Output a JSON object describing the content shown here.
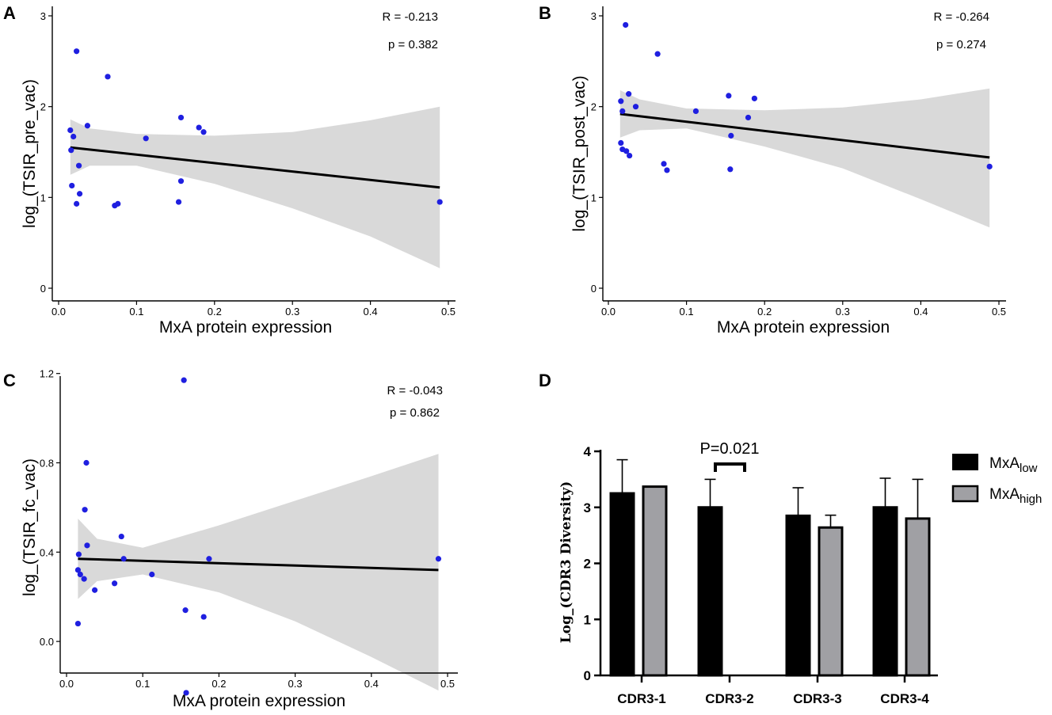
{
  "chart_data": [
    {
      "panel": "A",
      "type": "scatter",
      "xlabel": "MxA protein expression",
      "ylabel": "log_(TSIR_pre_vac)",
      "xlim": [
        0.0,
        0.5
      ],
      "ylim": [
        0,
        3
      ],
      "xticks": [
        "0.0",
        "0.1",
        "0.2",
        "0.3",
        "0.4",
        "0.5"
      ],
      "yticks": [
        "0",
        "1",
        "2",
        "3"
      ],
      "ytick_values": [
        0,
        1,
        2,
        3
      ],
      "stats": {
        "r": "R = -0.213",
        "p": "p = 0.382"
      },
      "points": [
        {
          "x": 0.023,
          "y": 2.61
        },
        {
          "x": 0.063,
          "y": 2.33
        },
        {
          "x": 0.157,
          "y": 1.88
        },
        {
          "x": 0.18,
          "y": 1.77
        },
        {
          "x": 0.186,
          "y": 1.72
        },
        {
          "x": 0.037,
          "y": 1.79
        },
        {
          "x": 0.015,
          "y": 1.74
        },
        {
          "x": 0.019,
          "y": 1.67
        },
        {
          "x": 0.112,
          "y": 1.65
        },
        {
          "x": 0.016,
          "y": 1.52
        },
        {
          "x": 0.026,
          "y": 1.35
        },
        {
          "x": 0.017,
          "y": 1.13
        },
        {
          "x": 0.157,
          "y": 1.18
        },
        {
          "x": 0.027,
          "y": 1.04
        },
        {
          "x": 0.023,
          "y": 0.93
        },
        {
          "x": 0.072,
          "y": 0.91
        },
        {
          "x": 0.076,
          "y": 0.93
        },
        {
          "x": 0.154,
          "y": 0.95
        },
        {
          "x": 0.489,
          "y": 0.95
        }
      ],
      "fit": {
        "x": [
          0.015,
          0.489
        ],
        "y": [
          1.55,
          1.11
        ]
      },
      "band": {
        "x": [
          0.015,
          0.04,
          0.1,
          0.2,
          0.3,
          0.4,
          0.489
        ],
        "lower": [
          1.25,
          1.35,
          1.35,
          1.15,
          0.88,
          0.57,
          0.22
        ],
        "upper": [
          1.86,
          1.76,
          1.7,
          1.68,
          1.72,
          1.85,
          2.0
        ]
      }
    },
    {
      "panel": "B",
      "type": "scatter",
      "xlabel": "MxA protein expression",
      "ylabel": "log_(TSIR_post_vac)",
      "xlim": [
        0.0,
        0.5
      ],
      "ylim": [
        0,
        3
      ],
      "xticks": [
        "0.0",
        "0.1",
        "0.2",
        "0.3",
        "0.4",
        "0.5"
      ],
      "yticks": [
        "0",
        "1",
        "2",
        "3"
      ],
      "ytick_values": [
        0,
        1,
        2,
        3
      ],
      "stats": {
        "r": "R = -0.264",
        "p": "p = 0.274"
      },
      "points": [
        {
          "x": 0.022,
          "y": 2.9
        },
        {
          "x": 0.063,
          "y": 2.58
        },
        {
          "x": 0.026,
          "y": 2.14
        },
        {
          "x": 0.154,
          "y": 2.12
        },
        {
          "x": 0.187,
          "y": 2.09
        },
        {
          "x": 0.016,
          "y": 2.06
        },
        {
          "x": 0.035,
          "y": 2.0
        },
        {
          "x": 0.112,
          "y": 1.95
        },
        {
          "x": 0.018,
          "y": 1.95
        },
        {
          "x": 0.179,
          "y": 1.88
        },
        {
          "x": 0.157,
          "y": 1.68
        },
        {
          "x": 0.016,
          "y": 1.6
        },
        {
          "x": 0.018,
          "y": 1.53
        },
        {
          "x": 0.023,
          "y": 1.51
        },
        {
          "x": 0.027,
          "y": 1.46
        },
        {
          "x": 0.071,
          "y": 1.37
        },
        {
          "x": 0.075,
          "y": 1.3
        },
        {
          "x": 0.156,
          "y": 1.31
        },
        {
          "x": 0.488,
          "y": 1.34
        }
      ],
      "fit": {
        "x": [
          0.015,
          0.488
        ],
        "y": [
          1.92,
          1.44
        ]
      },
      "band": {
        "x": [
          0.015,
          0.04,
          0.1,
          0.2,
          0.3,
          0.4,
          0.488
        ],
        "lower": [
          1.66,
          1.74,
          1.76,
          1.56,
          1.32,
          0.98,
          0.67
        ],
        "upper": [
          2.18,
          2.08,
          1.98,
          1.96,
          1.99,
          2.08,
          2.2
        ]
      }
    },
    {
      "panel": "C",
      "type": "scatter",
      "xlabel": "MxA protein expression",
      "ylabel": "log_(TSIR_fc_vac)",
      "xlim": [
        0.0,
        0.5
      ],
      "ylim": [
        -0.25,
        1.25
      ],
      "xticks": [
        "0.0",
        "0.1",
        "0.2",
        "0.3",
        "0.4",
        "0.5"
      ],
      "yticks": [
        "0.0",
        "0.4",
        "0.8",
        "1.2"
      ],
      "ytick_values": [
        0.0,
        0.4,
        0.8,
        1.2
      ],
      "stats": {
        "r": "R = -0.043",
        "p": "p = 0.862"
      },
      "points": [
        {
          "x": 0.154,
          "y": 1.17
        },
        {
          "x": 0.026,
          "y": 0.8
        },
        {
          "x": 0.024,
          "y": 0.59
        },
        {
          "x": 0.072,
          "y": 0.47
        },
        {
          "x": 0.027,
          "y": 0.43
        },
        {
          "x": 0.016,
          "y": 0.39
        },
        {
          "x": 0.075,
          "y": 0.37
        },
        {
          "x": 0.187,
          "y": 0.37
        },
        {
          "x": 0.488,
          "y": 0.37
        },
        {
          "x": 0.015,
          "y": 0.32
        },
        {
          "x": 0.018,
          "y": 0.3
        },
        {
          "x": 0.112,
          "y": 0.3
        },
        {
          "x": 0.023,
          "y": 0.28
        },
        {
          "x": 0.063,
          "y": 0.26
        },
        {
          "x": 0.037,
          "y": 0.23
        },
        {
          "x": 0.156,
          "y": 0.14
        },
        {
          "x": 0.18,
          "y": 0.11
        },
        {
          "x": 0.015,
          "y": 0.08
        },
        {
          "x": 0.157,
          "y": -0.23
        }
      ],
      "fit": {
        "x": [
          0.015,
          0.488
        ],
        "y": [
          0.37,
          0.32
        ]
      },
      "band": {
        "x": [
          0.015,
          0.04,
          0.1,
          0.2,
          0.3,
          0.4,
          0.488
        ],
        "lower": [
          0.19,
          0.27,
          0.3,
          0.22,
          0.09,
          -0.07,
          -0.22
        ],
        "upper": [
          0.55,
          0.46,
          0.42,
          0.52,
          0.63,
          0.74,
          0.84
        ]
      }
    },
    {
      "panel": "D",
      "type": "bar",
      "ylabel": "Log_(CDR3 Diversity)",
      "ylim": [
        0,
        4
      ],
      "yticks": [
        "0",
        "1",
        "2",
        "3",
        "4"
      ],
      "ytick_values": [
        0,
        1,
        2,
        3,
        4
      ],
      "categories": [
        "CDR3-1",
        "CDR3-2",
        "CDR3-3",
        "CDR3-4"
      ],
      "series": [
        {
          "name": "MxA",
          "subscript": "low",
          "color": "#000000",
          "values": [
            3.25,
            3.0,
            2.85,
            3.0
          ],
          "errors": [
            0.6,
            0.5,
            0.5,
            0.52
          ]
        },
        {
          "name": "MxA",
          "subscript": "high",
          "color": "#a0a0a4",
          "values": [
            3.37,
            null,
            2.64,
            2.8
          ],
          "errors": [
            0.0,
            null,
            0.22,
            0.7
          ]
        }
      ],
      "annotation": {
        "text": "P=0.021",
        "category": "CDR3-2"
      }
    }
  ],
  "colors": {
    "point": "#1f1fe0",
    "band": "#d9d9d9",
    "fit": "#000000",
    "bar_low": "#000000",
    "bar_high": "#a0a0a4"
  }
}
